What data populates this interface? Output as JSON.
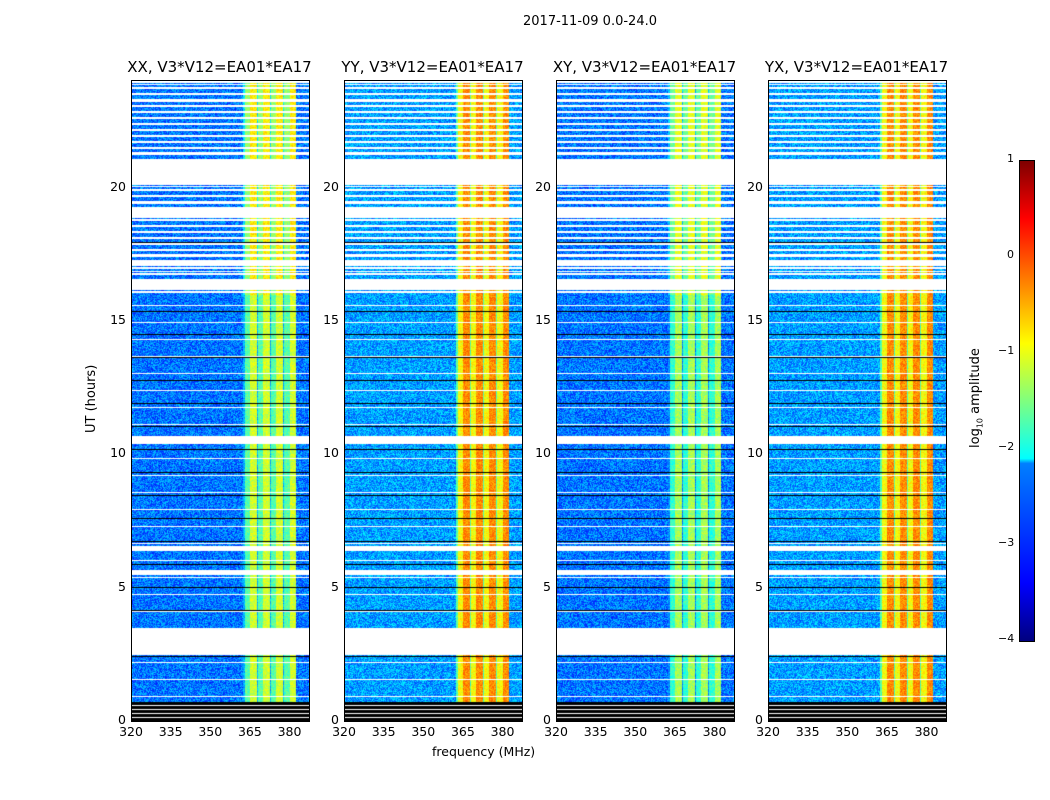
{
  "figure_title": "2017-11-09 0.0-24.0",
  "chart_data": {
    "type": "heatmap",
    "title": "2017-11-09 0.0-24.0",
    "xlabel": "frequency (MHz)",
    "ylabel": "UT (hours)",
    "xlim": [
      320,
      387
    ],
    "ylim": [
      0,
      24
    ],
    "xticks": [
      "320",
      "335",
      "350",
      "365",
      "380"
    ],
    "xtick_values": [
      320,
      335,
      350,
      365,
      380
    ],
    "yticks": [
      "0",
      "5",
      "10",
      "15",
      "20"
    ],
    "ytick_values": [
      0,
      5,
      10,
      15,
      20
    ],
    "panels": [
      {
        "title": "XX, V3*V12=EA01*EA17",
        "background_level": -2.8,
        "band_level": -1.4
      },
      {
        "title": "YY, V3*V12=EA01*EA17",
        "background_level": -2.6,
        "band_level": -0.6
      },
      {
        "title": "XY, V3*V12=EA01*EA17",
        "background_level": -2.8,
        "band_level": -1.6
      },
      {
        "title": "YX, V3*V12=EA01*EA17",
        "background_level": -2.6,
        "band_level": -0.6
      }
    ],
    "signal_band_mhz": [
      362,
      382
    ],
    "flagged_hours": [
      [
        0,
        0.7
      ],
      [
        2.5,
        3.5
      ],
      [
        5.5,
        5.7
      ],
      [
        6.4,
        6.6
      ],
      [
        10.4,
        10.7
      ],
      [
        16.2,
        16.6
      ],
      [
        17.1,
        17.3
      ],
      [
        18.9,
        19.3
      ],
      [
        20.2,
        21.1
      ]
    ],
    "colorbar": {
      "label": "log10 amplitude",
      "label_main": "log",
      "label_sub": "10",
      "label_rest": " amplitude",
      "ticks": [
        "1",
        "0",
        "−1",
        "−2",
        "−3",
        "−4"
      ],
      "tick_values": [
        1,
        0,
        -1,
        -2,
        -3,
        -4
      ],
      "colormap": "jet",
      "range": [
        -4,
        1
      ]
    }
  }
}
